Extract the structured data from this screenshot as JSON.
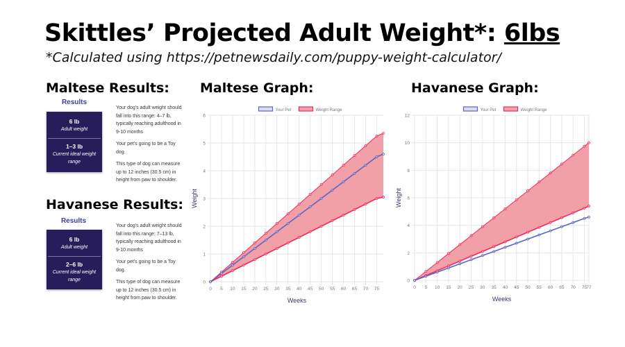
{
  "title": {
    "prefix": "Skittles’ Projected Adult Weight*: ",
    "value": "6lbs"
  },
  "subtitle": "*Calculated using https://petnewsdaily.com/puppy-weight-calculator/",
  "maltese_results": {
    "heading": "Maltese Results:",
    "results_label": "Results",
    "adult_weight": "6 lb",
    "adult_weight_label": "Adult weight",
    "current_range": "1–3 lb",
    "current_range_label": "Current ideal weight range",
    "paragraphs": [
      "Your dog's adult weight should fall into this range: 4–7 lb, typically reaching adulthood in 9-10 months",
      "Your pet's going to be a Toy dog.",
      "This type of dog can measure up to 12 inches (30.5 cm) in height from paw to shoulder."
    ]
  },
  "havanese_results": {
    "heading": "Havanese Results:",
    "results_label": "Results",
    "adult_weight": "6 lb",
    "adult_weight_label": "Adult weight",
    "current_range": "2–6 lb",
    "current_range_label": "Current ideal weight range",
    "paragraphs": [
      "Your dog's adult weight should fall into this range: 7–13 lb, typically reaching adulthood in 9-10 months",
      "Your pet's going to be a Toy dog.",
      "This type of dog can measure up to 12 inches (30.5 cm) in height from paw to shoulder."
    ]
  },
  "colors": {
    "pet": "#5b63c4",
    "range": "#f0285a",
    "range_fill": "#f2a0a8"
  },
  "chart_data": [
    {
      "type": "area",
      "heading": "Maltese Graph:",
      "xlabel": "Weeks",
      "ylabel": "Weight",
      "xlim": [
        0,
        78
      ],
      "ylim": [
        0,
        6
      ],
      "yticks": [
        0,
        1,
        2,
        3,
        4,
        5,
        6
      ],
      "xticks": [
        0,
        5,
        10,
        15,
        20,
        25,
        30,
        35,
        40,
        45,
        50,
        55,
        60,
        65,
        70,
        75
      ],
      "legend": [
        "Your Pet",
        "Weight Range"
      ],
      "legend_position": "top",
      "x": [
        0,
        5,
        10,
        15,
        20,
        25,
        30,
        35,
        40,
        45,
        50,
        55,
        60,
        65,
        70,
        75,
        78
      ],
      "series": [
        {
          "name": "Your Pet",
          "values": [
            0,
            0.3,
            0.6,
            0.9,
            1.2,
            1.5,
            1.8,
            2.1,
            2.4,
            2.7,
            3.0,
            3.3,
            3.6,
            3.9,
            4.2,
            4.5,
            4.6
          ]
        },
        {
          "name": "Weight Range (max)",
          "values": [
            0,
            0.35,
            0.7,
            1.05,
            1.4,
            1.75,
            2.1,
            2.45,
            2.8,
            3.15,
            3.5,
            3.85,
            4.2,
            4.55,
            4.9,
            5.25,
            5.35
          ]
        },
        {
          "name": "Weight Range (min)",
          "values": [
            0,
            0.2,
            0.4,
            0.6,
            0.8,
            1.0,
            1.2,
            1.4,
            1.6,
            1.8,
            2.0,
            2.2,
            2.4,
            2.6,
            2.8,
            3.0,
            3.05
          ]
        }
      ]
    },
    {
      "type": "area",
      "heading": "Havanese Graph:",
      "xlabel": "Weeks",
      "ylabel": "Weight",
      "xlim": [
        0,
        77
      ],
      "ylim": [
        0,
        12
      ],
      "yticks": [
        0,
        2,
        4,
        6,
        8,
        10,
        12
      ],
      "xticks": [
        0,
        5,
        10,
        15,
        20,
        25,
        30,
        35,
        40,
        45,
        50,
        55,
        60,
        65,
        70,
        75,
        77
      ],
      "legend": [
        "Your Pet",
        "Weight Range"
      ],
      "legend_position": "top",
      "x": [
        0,
        5,
        10,
        15,
        20,
        25,
        30,
        35,
        40,
        45,
        50,
        55,
        60,
        65,
        70,
        75,
        77
      ],
      "series": [
        {
          "name": "Your Pet",
          "values": [
            0,
            0.3,
            0.6,
            0.9,
            1.2,
            1.5,
            1.8,
            2.1,
            2.4,
            2.7,
            3.0,
            3.3,
            3.6,
            3.9,
            4.2,
            4.5,
            4.6
          ]
        },
        {
          "name": "Weight Range (max)",
          "values": [
            0,
            0.65,
            1.3,
            1.95,
            2.6,
            3.25,
            3.9,
            4.55,
            5.2,
            5.85,
            6.5,
            7.15,
            7.8,
            8.45,
            9.1,
            9.75,
            10.0
          ]
        },
        {
          "name": "Weight Range (min)",
          "values": [
            0,
            0.35,
            0.7,
            1.05,
            1.4,
            1.75,
            2.1,
            2.45,
            2.8,
            3.15,
            3.5,
            3.85,
            4.2,
            4.55,
            4.9,
            5.25,
            5.4
          ]
        }
      ]
    }
  ]
}
